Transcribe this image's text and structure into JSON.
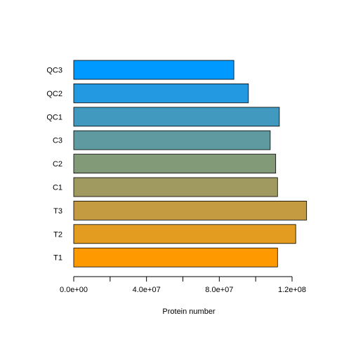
{
  "chart_data": {
    "type": "bar",
    "orientation": "horizontal",
    "categories": [
      "T1",
      "T2",
      "T3",
      "C1",
      "C2",
      "C3",
      "QC1",
      "QC2",
      "QC3"
    ],
    "values": [
      112000000,
      122000000,
      128000000,
      112000000,
      111000000,
      108000000,
      113000000,
      96000000,
      88000000
    ],
    "colors": [
      "#FF9900",
      "#E39B20",
      "#C49B40",
      "#A09A60",
      "#839A79",
      "#5F9AA0",
      "#4299C0",
      "#2299E0",
      "#0099FF"
    ],
    "xlabel": "Protein number",
    "xlim": [
      0,
      130000000
    ],
    "xticks": [
      0,
      20000000,
      40000000,
      60000000,
      80000000,
      100000000,
      120000000
    ],
    "xtick_labels": [
      "0.0e+00",
      "",
      "4.0e+07",
      "",
      "8.0e+07",
      "",
      "1.2e+08"
    ],
    "grid": false,
    "legend": "none"
  }
}
